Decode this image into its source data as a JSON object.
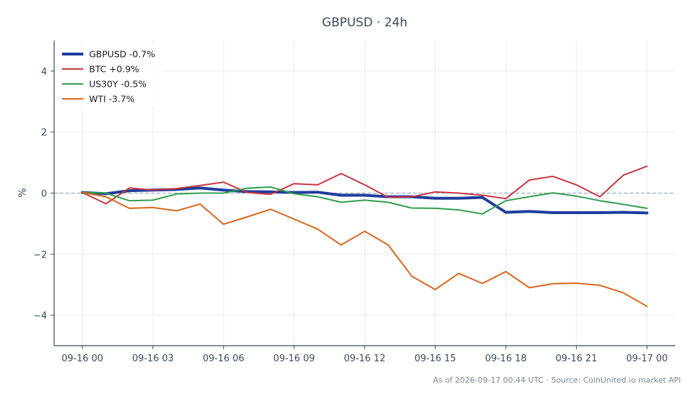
{
  "chart_data": {
    "type": "line",
    "title": "GBPUSD · 24h",
    "ylabel": "%",
    "xlabel": "",
    "ylim": [
      -5,
      5
    ],
    "yticks": [
      4,
      2,
      0,
      -2,
      -4
    ],
    "ytick_labels": [
      "4",
      "2",
      "0",
      "−2",
      "−4"
    ],
    "x": [
      0,
      1,
      2,
      3,
      4,
      5,
      6,
      7,
      8,
      9,
      10,
      11,
      12,
      13,
      14,
      15,
      16,
      17,
      18,
      19,
      20,
      21,
      22,
      23,
      24
    ],
    "xlim": [
      -1.2,
      25.2
    ],
    "xticks": [
      0,
      3,
      6,
      9,
      12,
      15,
      18,
      21,
      24
    ],
    "xtick_labels": [
      "09-16 00",
      "09-16 03",
      "09-16 06",
      "09-16 09",
      "09-16 12",
      "09-16 15",
      "09-16 18",
      "09-16 21",
      "09-17 00"
    ],
    "grid": true,
    "zero_line": true,
    "legend_position": "top-left",
    "series": [
      {
        "name": "GBPUSD -0.7%",
        "color": "#1f3c9c",
        "width": 4,
        "values": [
          0.02,
          -0.02,
          0.08,
          0.1,
          0.12,
          0.17,
          0.1,
          0.05,
          0.04,
          0.02,
          0.03,
          -0.07,
          -0.07,
          -0.12,
          -0.12,
          -0.17,
          -0.17,
          -0.14,
          -0.63,
          -0.6,
          -0.64,
          -0.64,
          -0.64,
          -0.63,
          -0.65
        ]
      },
      {
        "name": "BTC +0.9%",
        "color": "#c8363e",
        "width": 2,
        "values": [
          0.02,
          -0.35,
          0.17,
          0.1,
          0.15,
          0.25,
          0.36,
          0.02,
          -0.04,
          0.31,
          0.27,
          0.64,
          0.27,
          -0.14,
          -0.12,
          0.04,
          0.0,
          -0.07,
          -0.18,
          0.43,
          0.55,
          0.27,
          -0.12,
          0.59,
          0.88
        ]
      },
      {
        "name": "US30Y -0.5%",
        "color": "#2e9e4f",
        "width": 2,
        "values": [
          0.02,
          0.0,
          -0.25,
          -0.23,
          -0.03,
          0.0,
          0.0,
          0.16,
          0.2,
          -0.02,
          -0.12,
          -0.3,
          -0.23,
          -0.3,
          -0.49,
          -0.5,
          -0.55,
          -0.68,
          -0.25,
          -0.12,
          0.01,
          -0.1,
          -0.25,
          -0.37,
          -0.5
        ]
      },
      {
        "name": "WTI -3.7%",
        "color": "#d9641e",
        "width": 2,
        "values": [
          0.02,
          -0.12,
          -0.5,
          -0.47,
          -0.58,
          -0.36,
          -1.02,
          -0.78,
          -0.53,
          -0.85,
          -1.18,
          -1.7,
          -1.25,
          -1.7,
          -2.72,
          -3.16,
          -2.63,
          -2.96,
          -2.57,
          -3.1,
          -2.97,
          -2.95,
          -3.02,
          -3.27,
          -3.71
        ]
      }
    ]
  },
  "footer": "As of 2026-09-17 00:44 UTC · Source: CoinUnited.io market API"
}
